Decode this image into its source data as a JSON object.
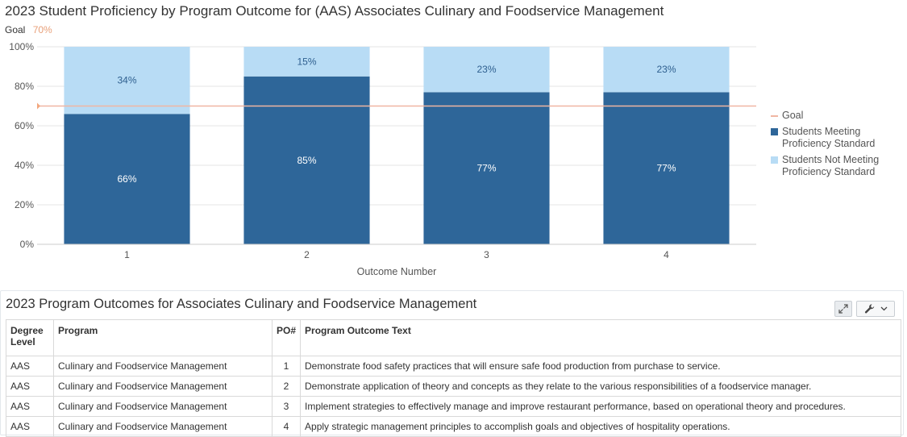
{
  "chart_data": {
    "type": "bar",
    "stacked": true,
    "title": "2023 Student Proficiency by Program Outcome for (AAS) Associates Culinary and Foodservice Management",
    "goal_label": "Goal",
    "goal_value_label": "70%",
    "goal_value": 70,
    "categories": [
      "1",
      "2",
      "3",
      "4"
    ],
    "xlabel": "Outcome Number",
    "ylabel": "",
    "ylim": [
      0,
      100
    ],
    "yticks": [
      0,
      20,
      40,
      60,
      80,
      100
    ],
    "ytick_labels": [
      "0%",
      "20%",
      "40%",
      "60%",
      "80%",
      "100%"
    ],
    "series": [
      {
        "name": "Students Meeting Proficiency Standard",
        "values": [
          66,
          85,
          77,
          77
        ],
        "labels": [
          "66%",
          "85%",
          "77%",
          "77%"
        ],
        "color": "#2e6699"
      },
      {
        "name": "Students Not Meeting Proficiency Standard",
        "values": [
          34,
          15,
          23,
          23
        ],
        "labels": [
          "34%",
          "15%",
          "23%",
          "23%"
        ],
        "color": "#b8dcf5"
      }
    ],
    "goal_color": "#f0b6a2",
    "legend_position": "right",
    "grid": true
  },
  "table": {
    "title": "2023 Program Outcomes for Associates Culinary and Foodservice Management",
    "headers": [
      "Degree Level",
      "Program",
      "PO#",
      "Program Outcome Text"
    ],
    "rows": [
      [
        "AAS",
        "Culinary and Foodservice Management",
        "1",
        "Demonstrate food safety practices that will ensure safe food production from purchase to service."
      ],
      [
        "AAS",
        "Culinary and Foodservice Management",
        "2",
        "Demonstrate application of theory and concepts as they relate to the various responsibilities of a foodservice manager."
      ],
      [
        "AAS",
        "Culinary and Foodservice Management",
        "3",
        "Implement strategies to effectively manage and improve restaurant performance, based on operational theory and procedures."
      ],
      [
        "AAS",
        "Culinary and Foodservice Management",
        "4",
        "Apply strategic management principles to accomplish goals and objectives of hospitality operations."
      ]
    ]
  },
  "toolbar": {
    "expand_icon": "expand-icon",
    "wrench_icon": "wrench-icon",
    "chevron_icon": "chevron-down-icon"
  }
}
